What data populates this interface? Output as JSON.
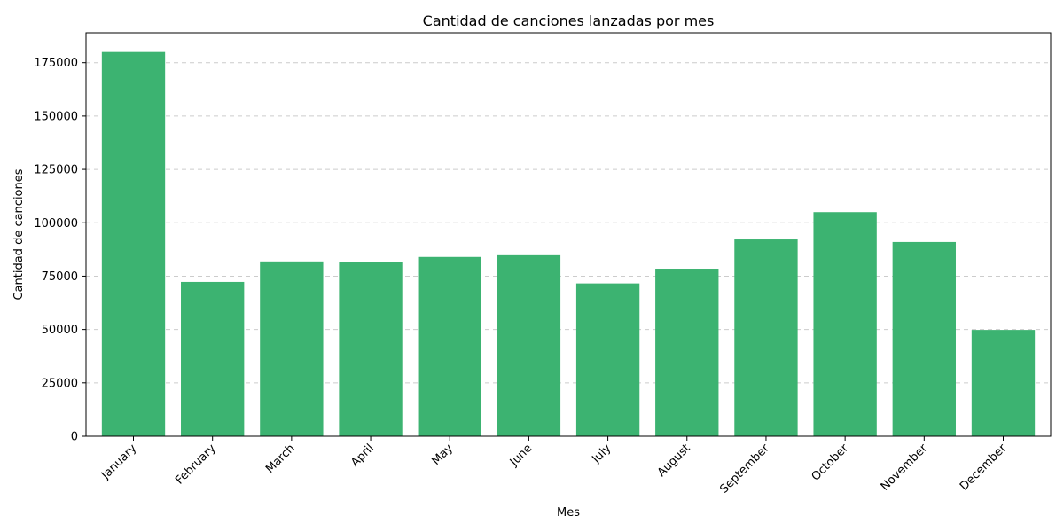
{
  "chart_data": {
    "type": "bar",
    "title": "Cantidad de canciones lanzadas por mes",
    "xlabel": "Mes",
    "ylabel": "Cantidad de canciones",
    "categories": [
      "January",
      "February",
      "March",
      "April",
      "May",
      "June",
      "July",
      "August",
      "September",
      "October",
      "November",
      "December"
    ],
    "values": [
      180000,
      72300,
      81900,
      81800,
      84000,
      84800,
      71600,
      78500,
      92200,
      105000,
      91000,
      49800
    ],
    "ylim": [
      0,
      189000
    ],
    "yticks": [
      "0",
      "25000",
      "50000",
      "75000",
      "100000",
      "125000",
      "150000",
      "175000"
    ],
    "ytick_values": [
      0,
      25000,
      50000,
      75000,
      100000,
      125000,
      150000,
      175000
    ],
    "grid": "y-dashed",
    "bar_color": "#3cb371",
    "legend": "none"
  }
}
